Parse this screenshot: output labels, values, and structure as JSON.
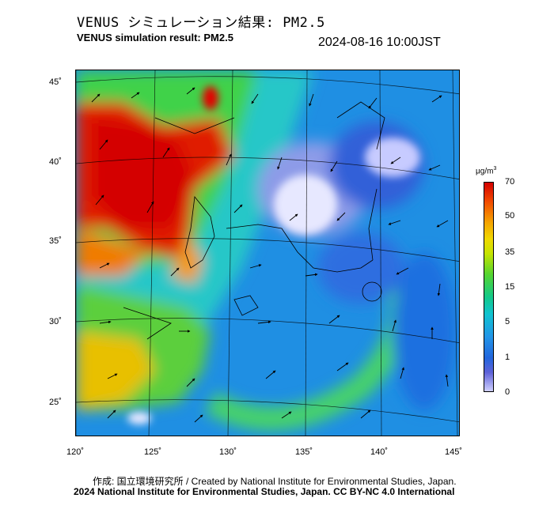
{
  "header": {
    "title_jp": "VENUS シミュレーション結果: PM2.5",
    "title_en": "VENUS simulation result: PM2.5",
    "timestamp": "2024-08-16 10:00JST"
  },
  "map": {
    "variable": "PM2.5",
    "region": "East Asia / Japan",
    "lat_ticks": [
      "45˚",
      "40˚",
      "35˚",
      "30˚",
      "25˚"
    ],
    "lon_ticks": [
      "120˚",
      "125˚",
      "130˚",
      "135˚",
      "140˚",
      "145˚"
    ],
    "features": [
      "typhoon vortex south of Japan",
      "high PM2.5 over eastern China and Korea"
    ],
    "colors": {
      "high": "#d40000",
      "mid_high": "#f5a300",
      "mid": "#55d530",
      "low_mid": "#10c3d0",
      "low": "#2266dd",
      "very_low": "#cfd0ff"
    }
  },
  "colorbar": {
    "unit_base": "μg/m",
    "unit_exp": "3",
    "labels": [
      "70",
      "50",
      "35",
      "15",
      "5",
      "1",
      "0"
    ]
  },
  "footer": {
    "credit": "作成: 国立環境研究所 / Created by National Institute for Environmental Studies, Japan.",
    "copyright": "2024 National Institute for Environmental Studies, Japan. CC BY-NC 4.0 International"
  }
}
